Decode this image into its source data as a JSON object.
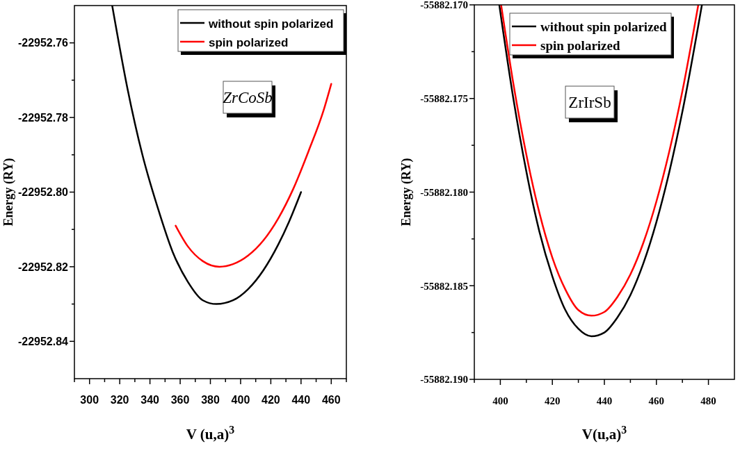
{
  "chart_data": [
    {
      "type": "line",
      "xlabel": "V (u,a)$^{3}$",
      "ylabel": "Energy (RY)",
      "xlim": [
        290,
        470
      ],
      "ylim": [
        -22952.85,
        -22952.75
      ],
      "xticks": [
        {
          "value": 290,
          "label": null
        },
        300,
        {
          "value": 310,
          "label": null
        },
        320,
        {
          "value": 330,
          "label": null
        },
        340,
        {
          "value": 350,
          "label": null
        },
        360,
        {
          "value": 370,
          "label": null
        },
        380,
        {
          "value": 390,
          "label": null
        },
        400,
        {
          "value": 410,
          "label": null
        },
        420,
        {
          "value": 430,
          "label": null
        },
        440,
        {
          "value": 450,
          "label": null
        },
        460,
        {
          "value": 470,
          "label": null
        }
      ],
      "yticks": [
        {
          "value": -22952.76,
          "label": "-22952.76"
        },
        {
          "value": -22952.77,
          "label": null
        },
        {
          "value": -22952.78,
          "label": "-22952.78"
        },
        {
          "value": -22952.79,
          "label": null
        },
        {
          "value": -22952.8,
          "label": "-22952.80"
        },
        {
          "value": -22952.81,
          "label": null
        },
        {
          "value": -22952.82,
          "label": "-22952.82"
        },
        {
          "value": -22952.83,
          "label": null
        },
        {
          "value": -22952.84,
          "label": "-22952.84"
        }
      ],
      "legend": "top right",
      "grid": false,
      "marker": "none",
      "line_style": "solid",
      "annotations": [
        "ZrCoSb"
      ],
      "series": [
        {
          "name": "without spin polarized",
          "color": "#000000",
          "x": [
            315,
            325,
            335,
            345,
            355,
            365,
            375,
            384,
            395,
            405,
            415,
            425,
            432,
            440
          ],
          "values": [
            -22952.75,
            -22952.772,
            -22952.79,
            -22952.804,
            -22952.816,
            -22952.824,
            -22952.829,
            -22952.83,
            -22952.829,
            -22952.826,
            -22952.821,
            -22952.814,
            -22952.808,
            -22952.8
          ]
        },
        {
          "name": "spin polarized",
          "color": "#ff0000",
          "x": [
            357,
            365,
            375,
            386,
            395,
            405,
            415,
            425,
            435,
            445,
            455,
            460
          ],
          "values": [
            -22952.809,
            -22952.8145,
            -22952.8185,
            -22952.82,
            -22952.8193,
            -22952.817,
            -22952.813,
            -22952.807,
            -22952.799,
            -22952.789,
            -22952.778,
            -22952.771
          ]
        }
      ]
    },
    {
      "type": "line",
      "xlabel": "V(u,a)$^{3}$",
      "ylabel": "Energy (RY)",
      "xlim": [
        390,
        490
      ],
      "ylim": [
        -55882.19,
        -55882.17
      ],
      "xticks": [
        {
          "value": 390,
          "label": null
        },
        400,
        {
          "value": 410,
          "label": null
        },
        420,
        {
          "value": 430,
          "label": null
        },
        440,
        {
          "value": 450,
          "label": null
        },
        460,
        {
          "value": 470,
          "label": null
        },
        480
      ],
      "yticks": [
        {
          "value": -55882.17,
          "label": "-55882.170"
        },
        {
          "value": -55882.1725,
          "label": null
        },
        {
          "value": -55882.175,
          "label": "-55882.175"
        },
        {
          "value": -55882.1775,
          "label": null
        },
        {
          "value": -55882.18,
          "label": "-55882.180"
        },
        {
          "value": -55882.1825,
          "label": null
        },
        {
          "value": -55882.185,
          "label": "-55882.185"
        },
        {
          "value": -55882.1875,
          "label": null
        },
        {
          "value": -55882.19,
          "label": "-55882.190"
        }
      ],
      "legend": "top",
      "grid": false,
      "marker": "none",
      "line_style": "solid",
      "annotations": [
        "ZrIrSb"
      ],
      "series": [
        {
          "name": "without spin polarized",
          "color": "#000000",
          "x": [
            399.6,
            405,
            410,
            415,
            420,
            425,
            430,
            435,
            440,
            445,
            450,
            455,
            460,
            465,
            470,
            477.5
          ],
          "values": [
            -55882.17,
            -55882.175,
            -55882.1789,
            -55882.1821,
            -55882.1845,
            -55882.1863,
            -55882.1873,
            -55882.1877,
            -55882.1875,
            -55882.1867,
            -55882.1855,
            -55882.1838,
            -55882.1816,
            -55882.1789,
            -55882.1757,
            -55882.17
          ]
        },
        {
          "name": "spin polarized",
          "color": "#ff0000",
          "x": [
            400.3,
            405,
            410,
            415,
            420,
            425,
            430,
            435,
            440,
            445,
            450,
            455,
            460,
            465,
            470,
            476.1
          ],
          "values": [
            -55882.17,
            -55882.1742,
            -55882.178,
            -55882.1811,
            -55882.1835,
            -55882.1852,
            -55882.1863,
            -55882.1866,
            -55882.1864,
            -55882.1856,
            -55882.1844,
            -55882.1827,
            -55882.1805,
            -55882.1778,
            -55882.1746,
            -55882.17
          ]
        }
      ]
    }
  ]
}
